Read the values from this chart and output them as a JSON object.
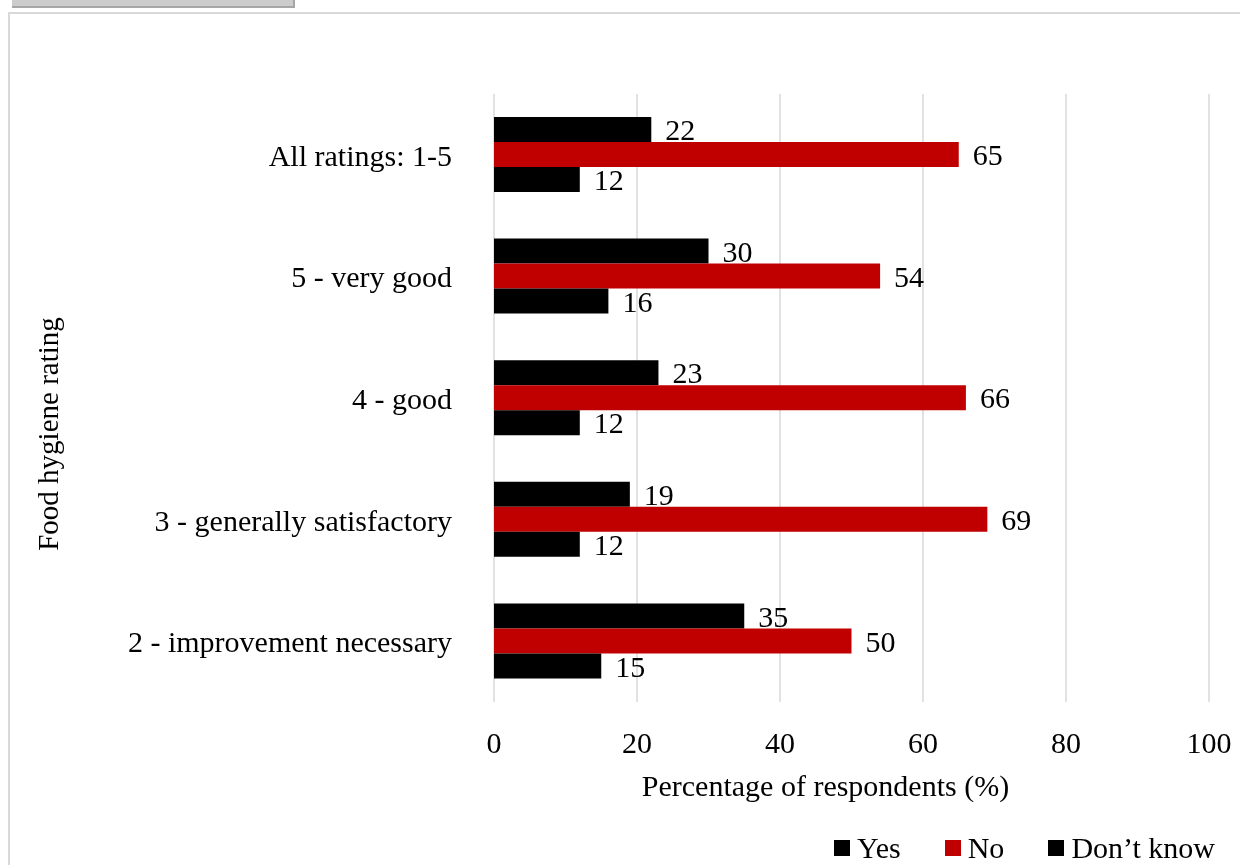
{
  "chart_data": {
    "type": "bar",
    "orientation": "horizontal",
    "xlabel": "Percentage of respondents (%)",
    "ylabel": "Food hygiene rating",
    "categories": [
      "All ratings: 1-5",
      "5 - very good",
      "4 - good",
      "3 - generally satisfactory",
      "2 - improvement necessary"
    ],
    "series": [
      {
        "name": "Yes",
        "color": "#000000",
        "values": [
          22,
          30,
          23,
          19,
          35
        ]
      },
      {
        "name": "No",
        "color": "#c00000",
        "values": [
          65,
          54,
          66,
          69,
          50
        ]
      },
      {
        "name": "Don’t know",
        "color": "#000000",
        "values": [
          12,
          16,
          12,
          12,
          15
        ]
      }
    ],
    "xlim": [
      0,
      100
    ],
    "xticks": [
      0,
      20,
      40,
      60,
      80,
      100
    ],
    "grid": "x",
    "legend": "bottom right",
    "data_labels": true
  }
}
